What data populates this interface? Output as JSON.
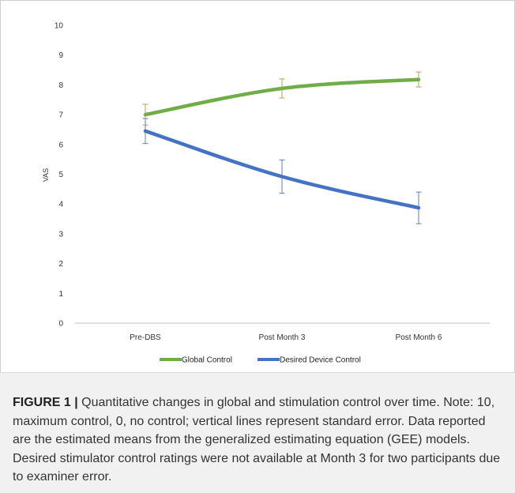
{
  "chart_data": {
    "type": "line",
    "categories": [
      "Pre-DBS",
      "Post Month 3",
      "Post Month 6"
    ],
    "ylabel": "VAS",
    "xlabel": "",
    "ylim": [
      0,
      10
    ],
    "yticks": [
      "0",
      "1",
      "2",
      "3",
      "4",
      "5",
      "6",
      "7",
      "8",
      "9",
      "10"
    ],
    "grid": false,
    "legend_position": "bottom",
    "series": [
      {
        "name": "Global Control",
        "color": "#70ad47",
        "errorColor": "#b5a24d",
        "values": [
          7.0,
          7.88,
          8.18
        ],
        "error": [
          0.35,
          0.32,
          0.25
        ]
      },
      {
        "name": "Desired Device Control",
        "color": "#4472c4",
        "errorColor": "#5b7fb8",
        "values": [
          6.45,
          4.92,
          3.87
        ],
        "error": [
          0.42,
          0.56,
          0.53
        ]
      }
    ]
  },
  "caption": {
    "label": "FIGURE 1",
    "separator": " | ",
    "text": "Quantitative changes in global and stimulation control over time. Note: 10, maximum control, 0, no control; vertical lines represent standard error. Data reported are the estimated means from the generalized estimating equation (GEE) models. Desired stimulator control ratings were not available at Month 3 for two participants due to examiner error."
  }
}
